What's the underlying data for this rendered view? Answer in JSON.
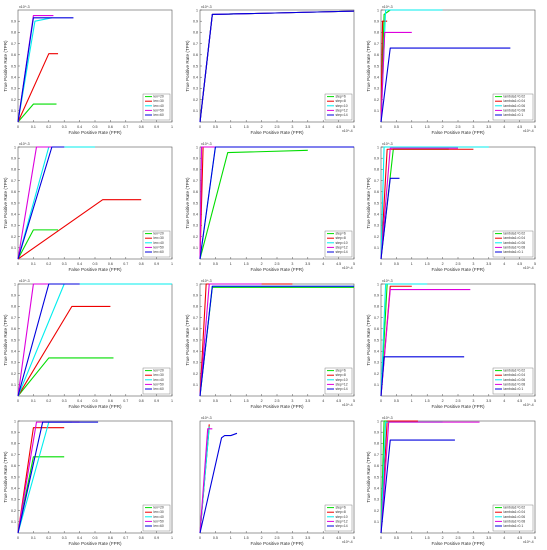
{
  "legend_sets": {
    "len": [
      "len=20",
      "len=30",
      "len=40",
      "len=50",
      "len=60"
    ],
    "step": [
      "step=6",
      "step=8",
      "step=10",
      "step=12",
      "step=14"
    ],
    "lambda": [
      "lambda1=0.02",
      "lambda1=0.04",
      "lambda1=0.06",
      "lambda1=0.08",
      "lambda1=0.1"
    ]
  },
  "colors": [
    "#00dd00",
    "#ee0000",
    "#00eeee",
    "#dd00dd",
    "#0000dd"
  ],
  "chart_data": [
    {
      "type": "line",
      "xlabel": "False Positive Rate (FPR)",
      "ylabel": "True Positive Rate (TPR)",
      "xlim": [
        0,
        1
      ],
      "ylim": [
        0,
        1
      ],
      "x_exp": "",
      "y_exp": "x10^-3",
      "x_ticks": [
        "0",
        "0.1",
        "0.2",
        "0.3",
        "0.4",
        "0.5",
        "0.6",
        "0.7",
        "0.8",
        "0.9",
        "1"
      ],
      "y_ticks": [
        "0.1",
        "0.2",
        "0.3",
        "0.4",
        "0.5",
        "0.6",
        "0.7",
        "0.8",
        "0.9"
      ],
      "legend": "len",
      "series": [
        {
          "x": [
            0,
            0.1,
            0.25
          ],
          "y": [
            0,
            0.16,
            0.16
          ]
        },
        {
          "x": [
            0,
            0.2,
            0.26
          ],
          "y": [
            0,
            0.61,
            0.61
          ]
        },
        {
          "x": [
            0,
            0.11,
            0.22
          ],
          "y": [
            0,
            0.9,
            0.93
          ]
        },
        {
          "x": [
            0,
            0.1,
            0.23
          ],
          "y": [
            0,
            0.95,
            0.95
          ]
        },
        {
          "x": [
            0,
            0.1,
            0.36
          ],
          "y": [
            0,
            0.93,
            0.93
          ]
        }
      ]
    },
    {
      "type": "line",
      "xlabel": "False Positive Rate (FPR)",
      "ylabel": "True Positive Rate (TPR)",
      "xlim": [
        0,
        5
      ],
      "ylim": [
        0,
        1
      ],
      "x_exp": "x10^-4",
      "y_exp": "x10^-3",
      "x_ticks": [
        "0",
        "0.5",
        "1",
        "1.5",
        "2",
        "2.5",
        "3",
        "3.5",
        "4",
        "4.5",
        "5"
      ],
      "y_ticks": [
        "0.1",
        "0.2",
        "0.3",
        "0.4",
        "0.5",
        "0.6",
        "0.7",
        "0.8",
        "0.9",
        "1"
      ],
      "legend": "step",
      "series": [
        {
          "x": [
            0,
            0.4,
            5
          ],
          "y": [
            0,
            0.96,
            0.99
          ]
        },
        {
          "x": [
            0,
            0.4,
            5
          ],
          "y": [
            0,
            0.96,
            0.99
          ]
        },
        {
          "x": [
            0,
            0.4,
            5
          ],
          "y": [
            0,
            0.96,
            0.99
          ]
        },
        {
          "x": [
            0,
            0.4,
            5
          ],
          "y": [
            0,
            0.96,
            0.99
          ]
        },
        {
          "x": [
            0,
            0.4,
            5
          ],
          "y": [
            0,
            0.96,
            0.99
          ]
        }
      ]
    },
    {
      "type": "line",
      "xlabel": "False Positive Rate (FPR)",
      "ylabel": "True Positive Rate (TPR)",
      "xlim": [
        0,
        5
      ],
      "ylim": [
        0,
        1
      ],
      "x_exp": "x10^-4",
      "y_exp": "x10^-3",
      "x_ticks": [
        "0",
        "0.5",
        "1",
        "1.5",
        "2",
        "2.5",
        "3",
        "3.5",
        "4",
        "4.5",
        "5"
      ],
      "y_ticks": [
        "0.1",
        "0.2",
        "0.3",
        "0.4",
        "0.5",
        "0.6",
        "0.7",
        "0.8",
        "0.9",
        "1"
      ],
      "legend": "lambda",
      "series": [
        {
          "x": [
            0,
            0.1,
            0.3
          ],
          "y": [
            0,
            0.96,
            1.0
          ]
        },
        {
          "x": [
            0,
            0.05,
            0.2
          ],
          "y": [
            0,
            0.9,
            0.9
          ]
        },
        {
          "x": [
            0,
            0.15,
            2.0
          ],
          "y": [
            0,
            1.0,
            1.0
          ]
        },
        {
          "x": [
            0,
            0.12,
            1.0
          ],
          "y": [
            0,
            0.8,
            0.8
          ]
        },
        {
          "x": [
            0,
            0.3,
            4.2
          ],
          "y": [
            0,
            0.66,
            0.66
          ]
        }
      ]
    },
    {
      "type": "line",
      "xlabel": "False Positive Rate (FPR)",
      "ylabel": "True Positive Rate (TPR)",
      "xlim": [
        0,
        1
      ],
      "ylim": [
        0,
        1
      ],
      "x_exp": "",
      "y_exp": "x10^-3",
      "x_ticks": [
        "0",
        "0.1",
        "0.2",
        "0.3",
        "0.4",
        "0.5",
        "0.6",
        "0.7",
        "0.8",
        "0.9",
        "1"
      ],
      "y_ticks": [
        "0.1",
        "0.2",
        "0.3",
        "0.4",
        "0.5",
        "0.6",
        "0.7",
        "0.8",
        "0.9",
        "1"
      ],
      "legend": "len",
      "series": [
        {
          "x": [
            0,
            0.1,
            0.26
          ],
          "y": [
            0,
            0.26,
            0.26
          ]
        },
        {
          "x": [
            0,
            0.55,
            0.8
          ],
          "y": [
            0,
            0.53,
            0.53
          ]
        },
        {
          "x": [
            0,
            0.2,
            0.5
          ],
          "y": [
            0,
            1.0,
            1.0
          ]
        },
        {
          "x": [
            0,
            0.12,
            0.3
          ],
          "y": [
            0,
            1.0,
            1.0
          ]
        },
        {
          "x": [
            0,
            0.22,
            0.3
          ],
          "y": [
            0,
            1.0,
            1.0
          ]
        }
      ]
    },
    {
      "type": "line",
      "xlabel": "False Positive Rate (FPR)",
      "ylabel": "True Positive Rate (TPR)",
      "xlim": [
        0,
        5
      ],
      "ylim": [
        0,
        1
      ],
      "x_exp": "x10^-4",
      "y_exp": "x10^-3",
      "x_ticks": [
        "0",
        "0.5",
        "1",
        "1.5",
        "2",
        "2.5",
        "3",
        "3.5",
        "4",
        "4.5",
        "5"
      ],
      "y_ticks": [
        "0.1",
        "0.2",
        "0.3",
        "0.4",
        "0.5",
        "0.6",
        "0.7",
        "0.8",
        "0.9",
        "1"
      ],
      "legend": "step",
      "series": [
        {
          "x": [
            0,
            0.9,
            3.5
          ],
          "y": [
            0,
            0.95,
            0.97
          ]
        },
        {
          "x": [
            0,
            0.1,
            5
          ],
          "y": [
            0,
            1.0,
            1.0
          ]
        },
        {
          "x": [
            0,
            0.5,
            5
          ],
          "y": [
            0,
            1.0,
            1.0
          ]
        },
        {
          "x": [
            0,
            0.05,
            0.8
          ],
          "y": [
            0,
            1.0,
            1.0
          ]
        },
        {
          "x": [
            0,
            0.5,
            5
          ],
          "y": [
            0,
            1.0,
            1.0
          ]
        }
      ]
    },
    {
      "type": "line",
      "xlabel": "False Positive Rate (FPR)",
      "ylabel": "True Positive Rate (TPR)",
      "xlim": [
        0,
        5
      ],
      "ylim": [
        0,
        1
      ],
      "x_exp": "x10^-4",
      "y_exp": "x10^-3",
      "x_ticks": [
        "0",
        "0.5",
        "1",
        "1.5",
        "2",
        "2.5",
        "3",
        "3.5",
        "4",
        "4.5",
        "5"
      ],
      "y_ticks": [
        "0.1",
        "0.2",
        "0.3",
        "0.4",
        "0.5",
        "0.6",
        "0.7",
        "0.8",
        "0.9",
        "1"
      ],
      "legend": "lambda",
      "series": [
        {
          "x": [
            0,
            0.4,
            2.2
          ],
          "y": [
            0,
            0.98,
            0.98
          ]
        },
        {
          "x": [
            0,
            0.2,
            3.0
          ],
          "y": [
            0,
            0.98,
            0.98
          ]
        },
        {
          "x": [
            0,
            0.1,
            3.5
          ],
          "y": [
            0,
            1.0,
            1.0
          ]
        },
        {
          "x": [
            0,
            0.3,
            2.5
          ],
          "y": [
            0,
            0.99,
            0.99
          ]
        },
        {
          "x": [
            0,
            0.3,
            0.6
          ],
          "y": [
            0,
            0.72,
            0.72
          ]
        }
      ]
    },
    {
      "type": "line",
      "xlabel": "False Positive Rate (FPR)",
      "ylabel": "True Positive Rate (TPR)",
      "xlim": [
        0,
        1
      ],
      "ylim": [
        0,
        1
      ],
      "x_exp": "",
      "y_exp": "x10^-3",
      "x_ticks": [
        "0",
        "0.1",
        "0.2",
        "0.3",
        "0.4",
        "0.5",
        "0.6",
        "0.7",
        "0.8",
        "0.9",
        "1"
      ],
      "y_ticks": [
        "0.1",
        "0.2",
        "0.3",
        "0.4",
        "0.5",
        "0.6",
        "0.7",
        "0.8",
        "0.9",
        "1"
      ],
      "legend": "len",
      "series": [
        {
          "x": [
            0,
            0.2,
            0.62
          ],
          "y": [
            0,
            0.34,
            0.34
          ]
        },
        {
          "x": [
            0,
            0.35,
            0.6
          ],
          "y": [
            0,
            0.8,
            0.8
          ]
        },
        {
          "x": [
            0,
            0.3,
            1.0
          ],
          "y": [
            0,
            1.0,
            1.0
          ]
        },
        {
          "x": [
            0,
            0.1,
            0.4
          ],
          "y": [
            0,
            1.0,
            1.0
          ]
        },
        {
          "x": [
            0,
            0.2,
            0.4
          ],
          "y": [
            0,
            1.0,
            1.0
          ]
        }
      ]
    },
    {
      "type": "line",
      "xlabel": "False Positive Rate (FPR)",
      "ylabel": "True Positive Rate (TPR)",
      "xlim": [
        0,
        5
      ],
      "ylim": [
        0,
        1
      ],
      "x_exp": "x10^-4",
      "y_exp": "x10^-3",
      "x_ticks": [
        "0",
        "0.5",
        "1",
        "1.5",
        "2",
        "2.5",
        "3",
        "3.5",
        "4",
        "4.5",
        "5"
      ],
      "y_ticks": [
        "0.1",
        "0.2",
        "0.3",
        "0.4",
        "0.5",
        "0.6",
        "0.7",
        "0.8",
        "0.9",
        "1"
      ],
      "legend": "step",
      "series": [
        {
          "x": [
            0,
            0.4,
            5
          ],
          "y": [
            0,
            0.97,
            0.97
          ]
        },
        {
          "x": [
            0,
            0.2,
            3.0
          ],
          "y": [
            0,
            1.0,
            1.0
          ]
        },
        {
          "x": [
            0,
            0.4,
            5
          ],
          "y": [
            0,
            0.98,
            0.98
          ]
        },
        {
          "x": [
            0,
            0.3,
            2.0
          ],
          "y": [
            0,
            1.0,
            1.0
          ]
        },
        {
          "x": [
            0,
            0.4,
            5
          ],
          "y": [
            0,
            0.98,
            0.98
          ]
        }
      ]
    },
    {
      "type": "line",
      "xlabel": "False Positive Rate (FPR)",
      "ylabel": "True Positive Rate (TPR)",
      "xlim": [
        0,
        5
      ],
      "ylim": [
        0,
        1
      ],
      "x_exp": "x10^-4",
      "y_exp": "x10^-3",
      "x_ticks": [
        "0",
        "0.5",
        "1",
        "1.5",
        "2",
        "2.5",
        "3",
        "3.5",
        "4",
        "4.5",
        "5"
      ],
      "y_ticks": [
        "0.1",
        "0.2",
        "0.3",
        "0.4",
        "0.5",
        "0.6",
        "0.7",
        "0.8",
        "0.9",
        "1"
      ],
      "legend": "lambda",
      "series": [
        {
          "x": [
            0,
            0.2,
            0.8
          ],
          "y": [
            0,
            1.0,
            1.0
          ]
        },
        {
          "x": [
            0,
            0.3,
            1.0
          ],
          "y": [
            0,
            0.98,
            0.98
          ]
        },
        {
          "x": [
            0,
            0.15,
            1.5
          ],
          "y": [
            0,
            1.0,
            1.0
          ]
        },
        {
          "x": [
            0,
            0.3,
            2.9
          ],
          "y": [
            0,
            0.95,
            0.95
          ]
        },
        {
          "x": [
            0,
            0.1,
            2.7
          ],
          "y": [
            0,
            0.35,
            0.35
          ]
        }
      ]
    },
    {
      "type": "line",
      "xlabel": "False Positive Rate (FPR)",
      "ylabel": "True Positive Rate (TPR)",
      "xlim": [
        0,
        1
      ],
      "ylim": [
        0,
        1
      ],
      "x_exp": "",
      "y_exp": "",
      "x_ticks": [
        "0",
        "0.1",
        "0.2",
        "0.3",
        "0.4",
        "0.5",
        "0.6",
        "0.7",
        "0.8",
        "0.9",
        "1"
      ],
      "y_ticks": [
        "0.1",
        "0.2",
        "0.3",
        "0.4",
        "0.5",
        "0.6",
        "0.7",
        "0.8",
        "0.9",
        "1"
      ],
      "legend": "len",
      "series": [
        {
          "x": [
            0,
            0.1,
            0.3
          ],
          "y": [
            0,
            0.68,
            0.68
          ]
        },
        {
          "x": [
            0,
            0.1,
            0.3
          ],
          "y": [
            0,
            0.94,
            0.94
          ]
        },
        {
          "x": [
            0,
            0.2,
            0.35
          ],
          "y": [
            0,
            0.99,
            0.99
          ]
        },
        {
          "x": [
            0,
            0.12,
            0.4
          ],
          "y": [
            0,
            0.99,
            0.99
          ]
        },
        {
          "x": [
            0,
            0.16,
            0.52
          ],
          "y": [
            0,
            0.99,
            0.99
          ]
        }
      ]
    },
    {
      "type": "line",
      "xlabel": "False Positive Rate (FPR)",
      "ylabel": "",
      "xlim": [
        0,
        5
      ],
      "ylim": [
        0,
        1
      ],
      "x_exp": "x10^-4",
      "y_exp": "x10^-3",
      "x_ticks": [
        "0",
        "0.5",
        "1",
        "1.5",
        "2",
        "2.5",
        "3",
        "3.5",
        "4",
        "4.5",
        "5"
      ],
      "y_ticks": [],
      "legend": "step",
      "series": [
        {
          "x": [
            0,
            0.3
          ],
          "y": [
            0,
            0.95
          ]
        },
        {
          "x": [
            0,
            0.3
          ],
          "y": [
            0,
            0.97
          ]
        },
        {
          "x": [
            0,
            0.3
          ],
          "y": [
            0,
            0.95
          ]
        },
        {
          "x": [
            0,
            0.25,
            0.4
          ],
          "y": [
            0,
            0.93,
            0.93
          ]
        },
        {
          "x": [
            0,
            0.7,
            0.8,
            1.0,
            1.1,
            1.2
          ],
          "y": [
            0,
            0.85,
            0.87,
            0.87,
            0.88,
            0.89
          ]
        }
      ]
    },
    {
      "type": "line",
      "xlabel": "False Positive Rate (FPR)",
      "ylabel": "True Positive Rate (TPR)",
      "xlim": [
        0,
        5
      ],
      "ylim": [
        0,
        1
      ],
      "x_exp": "x10^-4",
      "y_exp": "x10^-3",
      "x_ticks": [
        "0",
        "0.5",
        "1",
        "1.5",
        "2",
        "2.5",
        "3",
        "3.5",
        "4",
        "4.5",
        "5"
      ],
      "y_ticks": [
        "0.1",
        "0.2",
        "0.3",
        "0.4",
        "0.5",
        "0.6",
        "0.7",
        "0.8",
        "0.9",
        "1"
      ],
      "legend": "lambda",
      "series": [
        {
          "x": [
            0,
            0.1,
            0.5
          ],
          "y": [
            0,
            1.0,
            1.0
          ]
        },
        {
          "x": [
            0,
            0.2,
            1.2
          ],
          "y": [
            0,
            1.0,
            1.0
          ]
        },
        {
          "x": [
            0,
            0.15,
            2.0
          ],
          "y": [
            0,
            0.99,
            0.99
          ]
        },
        {
          "x": [
            0,
            0.25,
            3.2
          ],
          "y": [
            0,
            0.99,
            0.99
          ]
        },
        {
          "x": [
            0,
            0.3,
            2.4
          ],
          "y": [
            0,
            0.83,
            0.83
          ]
        }
      ]
    }
  ]
}
